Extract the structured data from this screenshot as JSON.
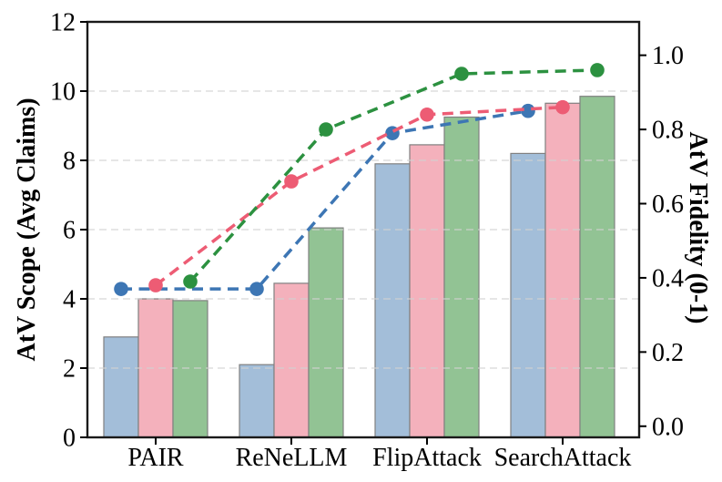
{
  "chart_data": {
    "type": "bar+line",
    "title": "",
    "categories": [
      "PAIR",
      "ReNeLLM",
      "FlipAttack",
      "SearchAttack"
    ],
    "bar_series": [
      {
        "name": "blue-bars",
        "color": "#a3bed9",
        "edge_color": "#808080",
        "axis": "left",
        "values": [
          2.9,
          2.1,
          7.9,
          8.2
        ]
      },
      {
        "name": "pink-bars",
        "color": "#f4b1bc",
        "edge_color": "#808080",
        "axis": "left",
        "values": [
          4.0,
          4.45,
          8.45,
          9.65
        ]
      },
      {
        "name": "green-bars",
        "color": "#92c394",
        "edge_color": "#808080",
        "axis": "left",
        "values": [
          3.95,
          6.05,
          9.25,
          9.85
        ]
      }
    ],
    "line_series": [
      {
        "name": "blue-line",
        "color": "#3d76b4",
        "axis": "right",
        "style": "dashed",
        "marker": "circle",
        "values": [
          0.37,
          0.37,
          0.79,
          0.85
        ]
      },
      {
        "name": "pink-line",
        "color": "#ed5c74",
        "axis": "right",
        "style": "dashed",
        "marker": "circle",
        "values": [
          0.38,
          0.66,
          0.84,
          0.86
        ]
      },
      {
        "name": "green-line",
        "color": "#2c9140",
        "axis": "right",
        "style": "dashed",
        "marker": "circle",
        "values": [
          0.39,
          0.8,
          0.95,
          0.96
        ]
      }
    ],
    "ylabel_left": "AtV Scope (Avg Claims)",
    "ylabel_right": "AtV Fidelity (0-1)",
    "ylim_left": [
      0,
      12
    ],
    "ylim_right": [
      -0.03,
      1.09
    ],
    "yticks_left": [
      0,
      2,
      4,
      6,
      8,
      10,
      12
    ],
    "yticks_right": [
      "0.0",
      "0.2",
      "0.4",
      "0.6",
      "0.8",
      "1.0"
    ],
    "grid": {
      "axis": "y",
      "ticks": [
        2,
        4,
        6,
        8,
        10
      ],
      "style": "dashed",
      "color": "#d2d2d2"
    },
    "legend": "none",
    "spine_color": "#1a1a1a",
    "tick_color": "#000000"
  }
}
